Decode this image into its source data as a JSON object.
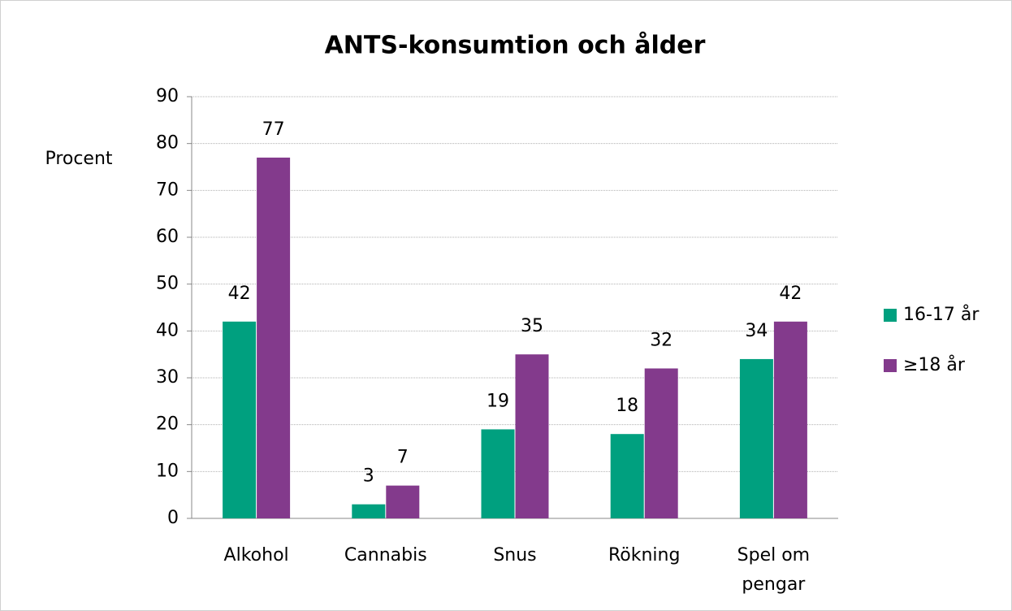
{
  "chart_data": {
    "type": "bar",
    "title": "ANTS-konsumtion och ålder",
    "y_label": "Procent",
    "categories": [
      "Alkohol",
      "Cannabis",
      "Snus",
      "Rökning",
      "Spel om pengar"
    ],
    "series": [
      {
        "name": "16-17 år",
        "color": "#00a07f",
        "values": [
          42,
          3,
          19,
          18,
          34
        ]
      },
      {
        "name": "≥18 år",
        "color": "#833a8c",
        "values": [
          77,
          7,
          35,
          32,
          42
        ]
      }
    ],
    "ylim": [
      0,
      90
    ],
    "yticks": [
      0,
      10,
      20,
      30,
      40,
      50,
      60,
      70,
      80,
      90
    ],
    "grid": true,
    "legend": "right"
  }
}
